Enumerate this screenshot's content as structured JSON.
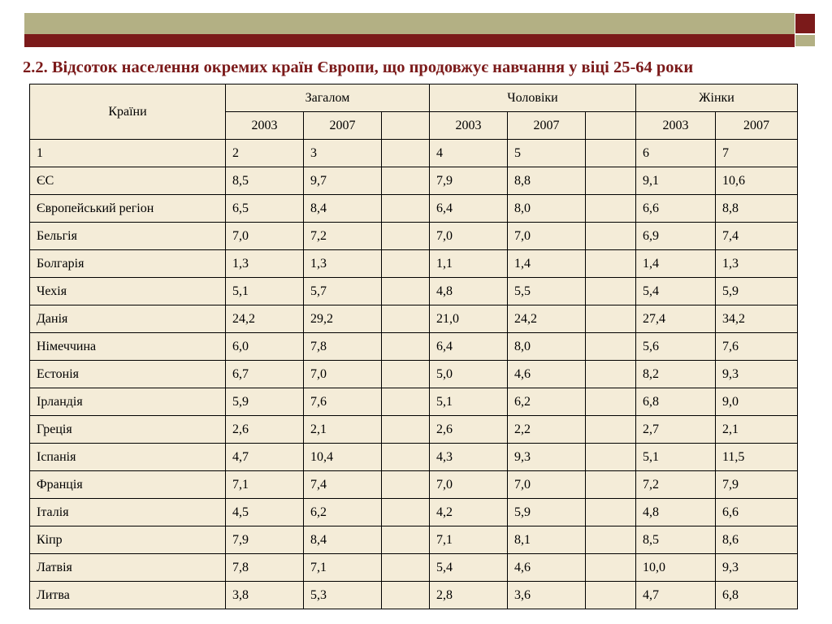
{
  "title": "2.2. Відсоток населення окремих країн Європи, що продовжує навчання у віці 25-64 роки",
  "colors": {
    "accent_dark": "#7b1a1a",
    "accent_light": "#b3b084",
    "table_bg": "#f4ecd8"
  },
  "table": {
    "countries_header": "Країни",
    "groups": [
      "Загалом",
      "Чоловіки",
      "Жінки"
    ],
    "years": [
      "2003",
      "2007",
      "",
      "2003",
      "2007",
      "",
      "2003",
      "2007"
    ],
    "column_numbers": [
      "1",
      "2",
      "3",
      "",
      "4",
      "5",
      "",
      "6",
      "7"
    ],
    "rows": [
      [
        "ЄС",
        "8,5",
        "9,7",
        "",
        "7,9",
        "8,8",
        "",
        "9,1",
        "10,6"
      ],
      [
        "Європейський регіон",
        "6,5",
        "8,4",
        "",
        "6,4",
        "8,0",
        "",
        "6,6",
        "8,8"
      ],
      [
        "Бельгія",
        "7,0",
        "7,2",
        "",
        "7,0",
        "7,0",
        "",
        "6,9",
        "7,4"
      ],
      [
        "Болгарія",
        "1,3",
        "1,3",
        "",
        "1,1",
        "1,4",
        "",
        "1,4",
        "1,3"
      ],
      [
        "Чехія",
        "5,1",
        "5,7",
        "",
        "4,8",
        "5,5",
        "",
        "5,4",
        "5,9"
      ],
      [
        "Данія",
        "24,2",
        "29,2",
        "",
        "21,0",
        "24,2",
        "",
        "27,4",
        "34,2"
      ],
      [
        "Німеччина",
        "6,0",
        "7,8",
        "",
        "6,4",
        "8,0",
        "",
        "5,6",
        "7,6"
      ],
      [
        "Естонія",
        "6,7",
        "7,0",
        "",
        "5,0",
        "4,6",
        "",
        "8,2",
        "9,3"
      ],
      [
        "Ірландія",
        "5,9",
        "7,6",
        "",
        "5,1",
        "6,2",
        "",
        "6,8",
        "9,0"
      ],
      [
        "Греція",
        "2,6",
        "2,1",
        "",
        "2,6",
        "2,2",
        "",
        "2,7",
        "2,1"
      ],
      [
        "Іспанія",
        "4,7",
        "10,4",
        "",
        "4,3",
        "9,3",
        "",
        "5,1",
        "11,5"
      ],
      [
        "Франція",
        "7,1",
        "7,4",
        "",
        "7,0",
        "7,0",
        "",
        "7,2",
        "7,9"
      ],
      [
        "Італія",
        "4,5",
        "6,2",
        "",
        "4,2",
        "5,9",
        "",
        "4,8",
        "6,6"
      ],
      [
        "Кіпр",
        "7,9",
        "8,4",
        "",
        "7,1",
        "8,1",
        "",
        "8,5",
        "8,6"
      ],
      [
        "Латвія",
        "7,8",
        "7,1",
        "",
        "5,4",
        "4,6",
        "",
        "10,0",
        "9,3"
      ],
      [
        "Литва",
        "3,8",
        "5,3",
        "",
        "2,8",
        "3,6",
        "",
        "4,7",
        "6,8"
      ]
    ]
  }
}
